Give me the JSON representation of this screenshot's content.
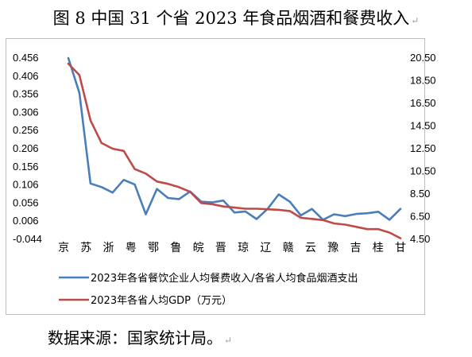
{
  "title": "图 8  中国 31 个省 2023 年食品烟酒和餐费收入",
  "title_mark": "↵",
  "source": "数据来源：国家统计局。",
  "source_mark": "↵",
  "chart_data": {
    "type": "line",
    "title": "图 8  中国 31 个省 2023 年食品烟酒和餐费收入",
    "grid": false,
    "legend_position": "bottom",
    "left_axis": {
      "ticks": [
        "0.456",
        "0.406",
        "0.356",
        "0.306",
        "0.256",
        "0.206",
        "0.156",
        "0.106",
        "0.056",
        "0.006",
        "-0.044"
      ],
      "ylim": [
        -0.044,
        0.456
      ]
    },
    "right_axis": {
      "ticks": [
        "20.50",
        "18.50",
        "16.50",
        "14.50",
        "12.50",
        "10.50",
        "8.50",
        "6.50",
        "4.50"
      ],
      "ylim": [
        4.5,
        20.5
      ]
    },
    "category_labels": [
      "京",
      "苏",
      "浙",
      "粤",
      "鄂",
      "鲁",
      "皖",
      "晋",
      "琼",
      "辽",
      "赣",
      "云",
      "豫",
      "吉",
      "桂",
      "甘"
    ],
    "n_points": 31,
    "series": [
      {
        "name": "2023年各省餐饮企业人均餐费收入/各省人均食品烟酒支出",
        "axis": "left",
        "color": "#4a7ebb",
        "values": [
          0.456,
          0.36,
          0.11,
          0.1,
          0.085,
          0.12,
          0.107,
          0.025,
          0.095,
          0.07,
          0.067,
          0.088,
          0.06,
          0.058,
          0.063,
          0.03,
          0.033,
          0.012,
          0.04,
          0.08,
          0.06,
          0.022,
          0.04,
          0.01,
          0.025,
          0.02,
          0.026,
          0.028,
          0.032,
          0.01,
          0.04
        ]
      },
      {
        "name": "2023年各省人均GDP（万元）",
        "axis": "right",
        "color": "#be4b48",
        "values": [
          20.0,
          19.0,
          15.0,
          13.0,
          12.5,
          12.3,
          10.7,
          10.3,
          9.6,
          9.4,
          9.1,
          8.7,
          7.7,
          7.6,
          7.4,
          7.3,
          7.2,
          7.2,
          7.15,
          7.1,
          7.0,
          6.4,
          6.3,
          6.2,
          5.9,
          5.8,
          5.6,
          5.4,
          5.4,
          5.1,
          4.6
        ]
      }
    ]
  }
}
